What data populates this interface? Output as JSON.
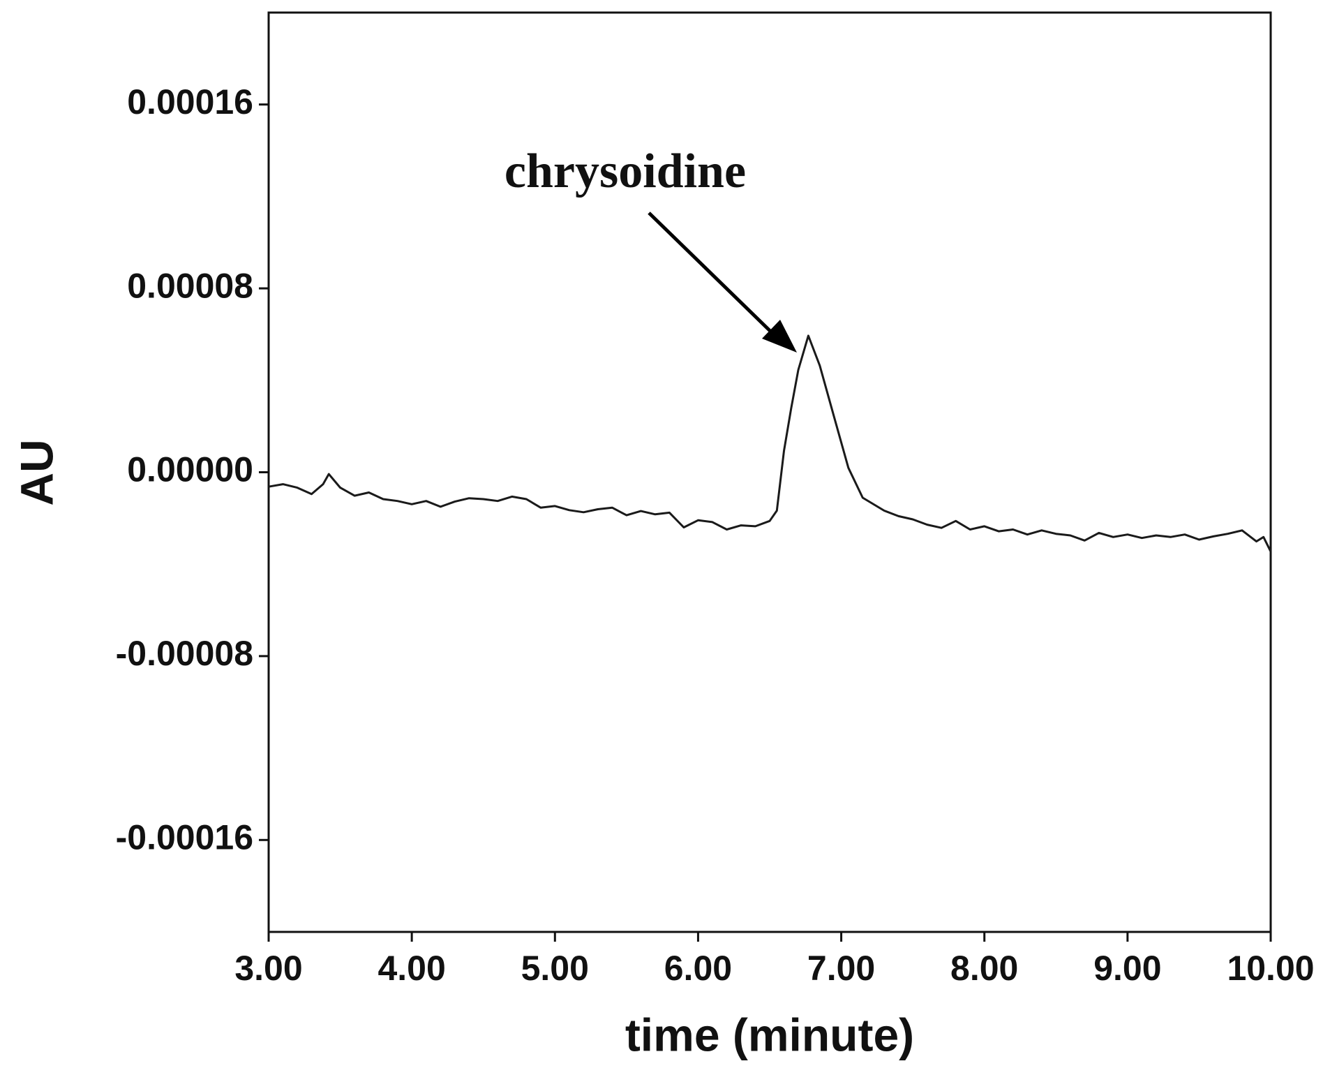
{
  "chart_data": {
    "type": "line",
    "y_label": "AU",
    "x_label": "time (minute)",
    "annotation": "chrysoidine",
    "color": "#1a1a1a",
    "x": [
      3.0,
      3.1,
      3.2,
      3.3,
      3.38,
      3.42,
      3.5,
      3.6,
      3.7,
      3.8,
      3.9,
      4.0,
      4.1,
      4.2,
      4.3,
      4.4,
      4.5,
      4.6,
      4.7,
      4.8,
      4.9,
      5.0,
      5.1,
      5.2,
      5.3,
      5.4,
      5.5,
      5.6,
      5.7,
      5.8,
      5.9,
      6.0,
      6.1,
      6.2,
      6.3,
      6.4,
      6.5,
      6.55,
      6.6,
      6.65,
      6.7,
      6.77,
      6.85,
      6.95,
      7.05,
      7.15,
      7.3,
      7.4,
      7.5,
      7.6,
      7.7,
      7.8,
      7.9,
      8.0,
      8.1,
      8.2,
      8.3,
      8.4,
      8.5,
      8.6,
      8.7,
      8.8,
      8.9,
      9.0,
      9.1,
      9.2,
      9.3,
      9.4,
      9.5,
      9.6,
      9.7,
      9.8,
      9.9,
      9.95,
      10.0
    ],
    "values": [
      -6.3e-06,
      -5.2e-06,
      -6.7e-06,
      -9.5e-06,
      -5.2e-06,
      -8e-07,
      -6.7e-06,
      -1.02e-05,
      -8.8e-06,
      -1.17e-05,
      -1.25e-05,
      -1.39e-05,
      -1.25e-05,
      -1.5e-05,
      -1.28e-05,
      -1.13e-05,
      -1.17e-05,
      -1.25e-05,
      -1.06e-05,
      -1.17e-05,
      -1.54e-05,
      -1.47e-05,
      -1.65e-05,
      -1.74e-05,
      -1.61e-05,
      -1.54e-05,
      -1.87e-05,
      -1.69e-05,
      -1.83e-05,
      -1.76e-05,
      -2.4e-05,
      -2.09e-05,
      -2.17e-05,
      -2.49e-05,
      -2.31e-05,
      -2.35e-05,
      -2.12e-05,
      -1.67e-05,
      9.3e-06,
      2.78e-05,
      4.45e-05,
      5.94e-05,
      4.64e-05,
      2.41e-05,
      1.9e-06,
      -1.11e-05,
      -1.67e-05,
      -1.91e-05,
      -2.05e-05,
      -2.28e-05,
      -2.42e-05,
      -2.12e-05,
      -2.49e-05,
      -2.35e-05,
      -2.57e-05,
      -2.49e-05,
      -2.71e-05,
      -2.53e-05,
      -2.68e-05,
      -2.75e-05,
      -2.97e-05,
      -2.64e-05,
      -2.82e-05,
      -2.71e-05,
      -2.86e-05,
      -2.75e-05,
      -2.82e-05,
      -2.71e-05,
      -2.93e-05,
      -2.79e-05,
      -2.68e-05,
      -2.53e-05,
      -3.01e-05,
      -2.82e-05,
      -3.45e-05
    ],
    "xlim": [
      3,
      10
    ],
    "ylim": [
      -0.0002,
      0.0002
    ],
    "xticks": [
      {
        "value": 3,
        "label": "3.00"
      },
      {
        "value": 4,
        "label": "4.00"
      },
      {
        "value": 5,
        "label": "5.00"
      },
      {
        "value": 6,
        "label": "6.00"
      },
      {
        "value": 7,
        "label": "7.00"
      },
      {
        "value": 8,
        "label": "8.00"
      },
      {
        "value": 9,
        "label": "9.00"
      },
      {
        "value": 10,
        "label": "10.00"
      }
    ],
    "yticks": [
      {
        "value": -0.00016,
        "label": "-0.00016"
      },
      {
        "value": -8e-05,
        "label": "-0.00008"
      },
      {
        "value": 0,
        "label": "0.00000"
      },
      {
        "value": 8e-05,
        "label": "0.00008"
      },
      {
        "value": 0.00016,
        "label": "0.00016"
      }
    ],
    "grid": false
  }
}
